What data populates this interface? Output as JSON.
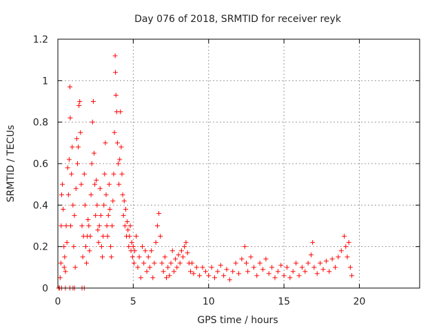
{
  "chart_data": {
    "type": "scatter",
    "title": "Day 076 of 2018, SRMTID for receiver reyk",
    "xlabel": "GPS time / hours",
    "ylabel": "SRMTID / TECUs",
    "xlim": [
      0,
      24
    ],
    "ylim": [
      0,
      1.2
    ],
    "xticks": [
      0,
      5,
      10,
      15,
      20
    ],
    "xtick_labels": [
      "0",
      "5",
      "10",
      "15",
      "20"
    ],
    "yticks": [
      0,
      0.2,
      0.4,
      0.6,
      0.8,
      1.0,
      1.2
    ],
    "ytick_labels": [
      "0",
      "0.2",
      "0.4",
      "0.6",
      "0.8",
      "1",
      "1.2"
    ],
    "grid": true,
    "marker": "plus",
    "point_color": "#ff0000",
    "series": [
      {
        "name": "SRMTID",
        "points": [
          [
            0.05,
            0.0
          ],
          [
            0.12,
            0.0
          ],
          [
            0.25,
            0.0
          ],
          [
            0.5,
            0.0
          ],
          [
            0.8,
            0.0
          ],
          [
            1.0,
            0.0
          ],
          [
            1.1,
            0.0
          ],
          [
            1.6,
            0.0
          ],
          [
            1.75,
            0.0
          ],
          [
            0.15,
            0.05
          ],
          [
            0.2,
            0.12
          ],
          [
            0.22,
            0.3
          ],
          [
            0.25,
            0.45
          ],
          [
            0.3,
            0.5
          ],
          [
            0.35,
            0.38
          ],
          [
            0.4,
            0.2
          ],
          [
            0.42,
            0.1
          ],
          [
            0.45,
            0.15
          ],
          [
            0.5,
            0.08
          ],
          [
            0.55,
            0.3
          ],
          [
            0.6,
            0.22
          ],
          [
            0.65,
            0.58
          ],
          [
            0.7,
            0.45
          ],
          [
            0.75,
            0.62
          ],
          [
            0.8,
            0.97
          ],
          [
            0.82,
            0.82
          ],
          [
            0.85,
            0.3
          ],
          [
            0.9,
            0.55
          ],
          [
            0.95,
            0.68
          ],
          [
            1.0,
            0.4
          ],
          [
            1.05,
            0.2
          ],
          [
            1.1,
            0.35
          ],
          [
            1.15,
            0.1
          ],
          [
            1.2,
            0.48
          ],
          [
            1.25,
            0.72
          ],
          [
            1.3,
            0.6
          ],
          [
            1.35,
            0.68
          ],
          [
            1.4,
            0.88
          ],
          [
            1.45,
            0.9
          ],
          [
            1.5,
            0.75
          ],
          [
            1.55,
            0.5
          ],
          [
            1.6,
            0.3
          ],
          [
            1.65,
            0.15
          ],
          [
            1.7,
            0.25
          ],
          [
            1.75,
            0.55
          ],
          [
            1.8,
            0.4
          ],
          [
            1.85,
            0.2
          ],
          [
            1.9,
            0.12
          ],
          [
            1.95,
            0.25
          ],
          [
            2.0,
            0.33
          ],
          [
            2.05,
            0.3
          ],
          [
            2.1,
            0.18
          ],
          [
            2.15,
            0.25
          ],
          [
            2.2,
            0.45
          ],
          [
            2.25,
            0.6
          ],
          [
            2.3,
            0.8
          ],
          [
            2.35,
            0.9
          ],
          [
            2.4,
            0.65
          ],
          [
            2.45,
            0.5
          ],
          [
            2.5,
            0.35
          ],
          [
            2.55,
            0.52
          ],
          [
            2.6,
            0.4
          ],
          [
            2.65,
            0.28
          ],
          [
            2.7,
            0.22
          ],
          [
            2.75,
            0.3
          ],
          [
            2.8,
            0.48
          ],
          [
            2.85,
            0.35
          ],
          [
            2.9,
            0.2
          ],
          [
            2.95,
            0.15
          ],
          [
            3.0,
            0.25
          ],
          [
            3.05,
            0.4
          ],
          [
            3.1,
            0.55
          ],
          [
            3.15,
            0.7
          ],
          [
            3.2,
            0.45
          ],
          [
            3.25,
            0.3
          ],
          [
            3.3,
            0.25
          ],
          [
            3.35,
            0.35
          ],
          [
            3.4,
            0.5
          ],
          [
            3.45,
            0.38
          ],
          [
            3.5,
            0.2
          ],
          [
            3.55,
            0.15
          ],
          [
            3.6,
            0.3
          ],
          [
            3.65,
            0.42
          ],
          [
            3.7,
            0.55
          ],
          [
            3.75,
            0.75
          ],
          [
            3.8,
            1.12
          ],
          [
            3.82,
            1.04
          ],
          [
            3.85,
            0.93
          ],
          [
            3.9,
            0.85
          ],
          [
            3.95,
            0.7
          ],
          [
            4.0,
            0.6
          ],
          [
            4.05,
            0.5
          ],
          [
            4.1,
            0.62
          ],
          [
            4.15,
            0.85
          ],
          [
            4.2,
            0.68
          ],
          [
            4.25,
            0.55
          ],
          [
            4.3,
            0.45
          ],
          [
            4.35,
            0.35
          ],
          [
            4.4,
            0.42
          ],
          [
            4.45,
            0.3
          ],
          [
            4.5,
            0.38
          ],
          [
            4.55,
            0.25
          ],
          [
            4.6,
            0.32
          ],
          [
            4.65,
            0.28
          ],
          [
            4.7,
            0.2
          ],
          [
            4.75,
            0.25
          ],
          [
            4.8,
            0.3
          ],
          [
            4.85,
            0.18
          ],
          [
            4.9,
            0.22
          ],
          [
            4.95,
            0.15
          ],
          [
            5.0,
            0.2
          ],
          [
            5.05,
            0.12
          ],
          [
            5.1,
            0.18
          ],
          [
            5.2,
            0.25
          ],
          [
            5.3,
            0.1
          ],
          [
            5.4,
            0.15
          ],
          [
            5.5,
            0.05
          ],
          [
            5.6,
            0.2
          ],
          [
            5.7,
            0.12
          ],
          [
            5.8,
            0.18
          ],
          [
            5.9,
            0.08
          ],
          [
            6.0,
            0.15
          ],
          [
            6.1,
            0.1
          ],
          [
            6.2,
            0.18
          ],
          [
            6.3,
            0.05
          ],
          [
            6.4,
            0.12
          ],
          [
            6.5,
            0.22
          ],
          [
            6.6,
            0.3
          ],
          [
            6.7,
            0.36
          ],
          [
            6.8,
            0.25
          ],
          [
            6.9,
            0.12
          ],
          [
            7.0,
            0.08
          ],
          [
            7.1,
            0.15
          ],
          [
            7.2,
            0.05
          ],
          [
            7.3,
            0.1
          ],
          [
            7.4,
            0.06
          ],
          [
            7.5,
            0.12
          ],
          [
            7.6,
            0.18
          ],
          [
            7.7,
            0.08
          ],
          [
            7.8,
            0.14
          ],
          [
            7.9,
            0.1
          ],
          [
            8.0,
            0.16
          ],
          [
            8.1,
            0.12
          ],
          [
            8.2,
            0.18
          ],
          [
            8.3,
            0.15
          ],
          [
            8.4,
            0.2
          ],
          [
            8.5,
            0.22
          ],
          [
            8.6,
            0.17
          ],
          [
            8.7,
            0.12
          ],
          [
            8.8,
            0.08
          ],
          [
            8.9,
            0.12
          ],
          [
            9.0,
            0.07
          ],
          [
            9.2,
            0.1
          ],
          [
            9.4,
            0.06
          ],
          [
            9.6,
            0.1
          ],
          [
            9.8,
            0.08
          ],
          [
            10.0,
            0.06
          ],
          [
            10.2,
            0.1
          ],
          [
            10.4,
            0.05
          ],
          [
            10.6,
            0.08
          ],
          [
            10.8,
            0.11
          ],
          [
            11.0,
            0.06
          ],
          [
            11.2,
            0.09
          ],
          [
            11.4,
            0.04
          ],
          [
            11.6,
            0.08
          ],
          [
            11.8,
            0.12
          ],
          [
            12.0,
            0.07
          ],
          [
            12.2,
            0.14
          ],
          [
            12.4,
            0.2
          ],
          [
            12.5,
            0.12
          ],
          [
            12.6,
            0.08
          ],
          [
            12.8,
            0.15
          ],
          [
            13.0,
            0.1
          ],
          [
            13.2,
            0.06
          ],
          [
            13.4,
            0.12
          ],
          [
            13.6,
            0.09
          ],
          [
            13.8,
            0.14
          ],
          [
            14.0,
            0.07
          ],
          [
            14.2,
            0.1
          ],
          [
            14.4,
            0.05
          ],
          [
            14.6,
            0.08
          ],
          [
            14.8,
            0.11
          ],
          [
            15.0,
            0.06
          ],
          [
            15.2,
            0.1
          ],
          [
            15.4,
            0.05
          ],
          [
            15.6,
            0.08
          ],
          [
            15.8,
            0.12
          ],
          [
            16.0,
            0.06
          ],
          [
            16.2,
            0.1
          ],
          [
            16.4,
            0.08
          ],
          [
            16.6,
            0.12
          ],
          [
            16.8,
            0.16
          ],
          [
            16.9,
            0.22
          ],
          [
            17.0,
            0.1
          ],
          [
            17.2,
            0.07
          ],
          [
            17.4,
            0.12
          ],
          [
            17.6,
            0.09
          ],
          [
            17.8,
            0.13
          ],
          [
            18.0,
            0.08
          ],
          [
            18.2,
            0.14
          ],
          [
            18.4,
            0.1
          ],
          [
            18.6,
            0.15
          ],
          [
            18.8,
            0.18
          ],
          [
            19.0,
            0.25
          ],
          [
            19.1,
            0.2
          ],
          [
            19.2,
            0.15
          ],
          [
            19.3,
            0.22
          ],
          [
            19.4,
            0.1
          ],
          [
            19.5,
            0.06
          ]
        ]
      }
    ]
  }
}
